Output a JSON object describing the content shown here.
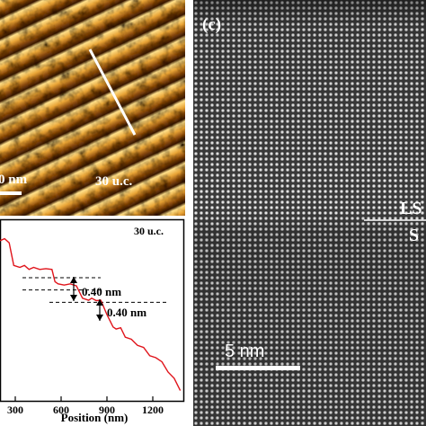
{
  "panel_a": {
    "scale_text": "0 nm",
    "thickness_label": "30 u.c."
  },
  "panel_b": {
    "thickness_label": "30 u.c.",
    "step_label_1": "0.40 nm",
    "step_label_2": "0.40 nm",
    "xlabel": "Position (nm)",
    "xticks": [
      "300",
      "600",
      "900",
      "1200"
    ],
    "line_color": "#e0141b"
  },
  "panel_c": {
    "panel_letter": "(c)",
    "interface_top_label": "LS",
    "interface_bottom_label": "S",
    "scale_bar_label": "5 nm"
  },
  "chart_data": {
    "type": "line",
    "title": "",
    "xlabel": "Position (nm)",
    "ylabel": "",
    "xlim": [
      200,
      1400
    ],
    "x_ticks": [
      300,
      600,
      900,
      1200
    ],
    "series": [
      {
        "x": [
          200,
          230,
          260,
          290,
          330,
          360,
          390,
          420,
          460,
          500,
          540,
          560,
          580,
          620,
          660,
          700,
          740,
          780,
          800,
          830,
          860,
          900,
          940,
          960,
          990,
          1020,
          1060,
          1100,
          1140,
          1180,
          1220,
          1260,
          1300,
          1340,
          1380
        ],
        "y": [
          3.9,
          3.95,
          3.85,
          3.3,
          3.25,
          3.3,
          3.2,
          3.25,
          3.2,
          3.22,
          3.2,
          2.9,
          2.85,
          2.82,
          2.85,
          2.8,
          2.5,
          2.45,
          2.5,
          2.44,
          2.45,
          2.1,
          1.8,
          1.75,
          1.78,
          1.55,
          1.5,
          1.35,
          1.3,
          1.1,
          1.05,
          0.95,
          0.7,
          0.55,
          0.25
        ]
      }
    ],
    "annotations": [
      "0.40 nm",
      "0.40 nm"
    ],
    "grid": false
  }
}
